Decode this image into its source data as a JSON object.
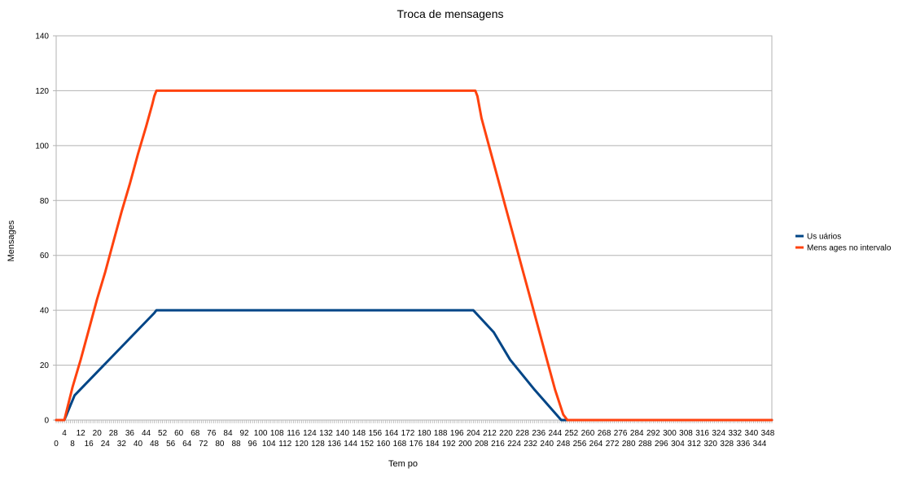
{
  "chart_data": {
    "type": "line",
    "title": "Troca de mensagens",
    "xlabel": "Tem po",
    "ylabel": "Mensages",
    "xlim": [
      0,
      350
    ],
    "ylim": [
      0,
      140
    ],
    "y_ticks": [
      0,
      20,
      40,
      60,
      80,
      100,
      120,
      140
    ],
    "x_tick_step": 4,
    "grid": "horizontal",
    "legend": "right",
    "series": [
      {
        "name": "Us uários",
        "color": "#004586",
        "x": [
          0,
          4,
          9,
          48,
          49,
          204,
          214,
          222,
          234,
          247,
          250,
          350
        ],
        "y": [
          0,
          0,
          9,
          39,
          40,
          40,
          32,
          22,
          11,
          0,
          0,
          0
        ]
      },
      {
        "name": "Mens ages  no intervalo",
        "color": "#ff420e",
        "x": [
          0,
          4,
          8,
          12,
          16,
          20,
          24,
          28,
          32,
          36,
          40,
          44,
          47,
          48,
          49,
          205,
          206,
          208,
          212,
          216,
          220,
          224,
          228,
          232,
          236,
          240,
          244,
          248,
          250,
          350
        ],
        "y": [
          0,
          0,
          12,
          22,
          33,
          44,
          54,
          65,
          76,
          86,
          97,
          107,
          115,
          118,
          120,
          120,
          118,
          110,
          99,
          88,
          77,
          66,
          55,
          44,
          33,
          22,
          11,
          2,
          0,
          0
        ]
      }
    ]
  }
}
